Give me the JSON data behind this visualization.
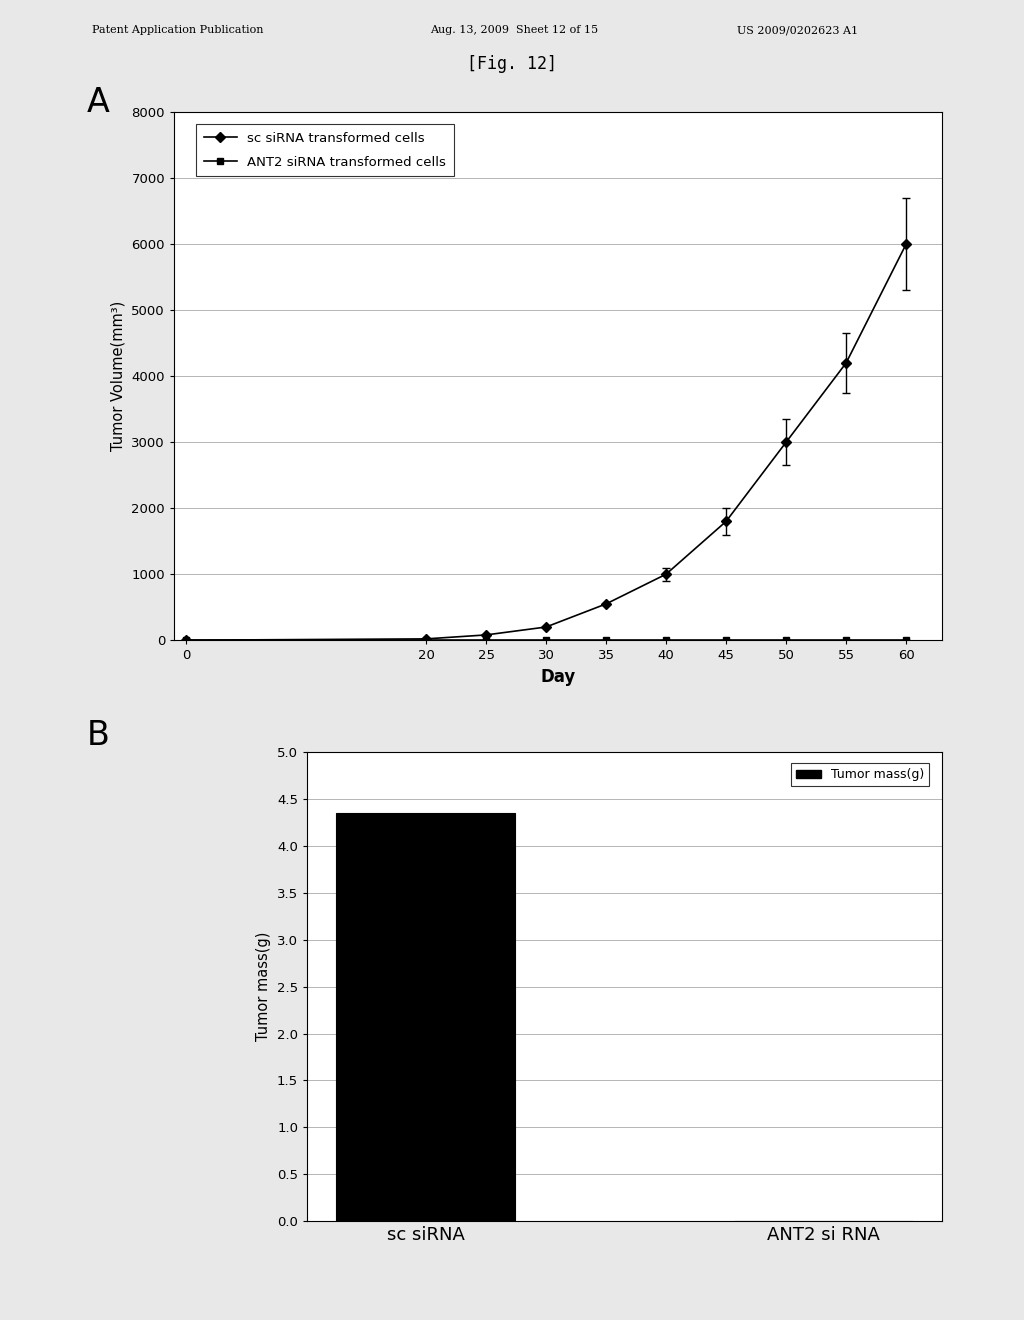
{
  "fig_title": "[Fig. 12]",
  "patent_header_left": "Patent Application Publication",
  "patent_header_mid": "Aug. 13, 2009  Sheet 12 of 15",
  "patent_header_right": "US 2009/0202623 A1",
  "panel_A_label": "A",
  "sc_siRNA_x_pts": [
    0,
    20,
    25,
    30,
    35,
    40,
    45,
    50,
    55,
    60
  ],
  "sc_siRNA_y_pts": [
    0,
    20,
    80,
    200,
    550,
    1000,
    1800,
    3000,
    4200,
    6000
  ],
  "sc_siRNA_yerr": [
    0,
    0,
    0,
    0,
    0,
    100,
    200,
    350,
    450,
    700
  ],
  "ant2_siRNA_x_pts": [
    0,
    20,
    25,
    30,
    35,
    40,
    45,
    50,
    55,
    60
  ],
  "ant2_siRNA_y_pts": [
    0,
    0,
    0,
    0,
    0,
    0,
    0,
    0,
    0,
    0
  ],
  "ant2_siRNA_yerr": [
    0,
    0,
    0,
    0,
    0,
    0,
    0,
    0,
    0,
    0
  ],
  "A_ylabel": "Tumor Volume(mm³)",
  "A_xlabel": "Day",
  "A_ylim": [
    0,
    8000
  ],
  "A_yticks": [
    0,
    1000,
    2000,
    3000,
    4000,
    5000,
    6000,
    7000,
    8000
  ],
  "A_xticks": [
    0,
    20,
    25,
    30,
    35,
    40,
    45,
    50,
    55,
    60
  ],
  "legend_sc": "sc siRNA transformed cells",
  "legend_ant2": "ANT2 siRNA transformed cells",
  "panel_B_label": "B",
  "bar_categories": [
    "sc siRNA",
    "ANT2 si RNA"
  ],
  "bar_values": [
    4.35,
    0.0
  ],
  "bar_color": "#000000",
  "B_ylabel": "Tumor mass(g)",
  "B_ylim": [
    0,
    5
  ],
  "B_yticks": [
    0,
    0.5,
    1,
    1.5,
    2,
    2.5,
    3,
    3.5,
    4,
    4.5,
    5
  ],
  "legend_tumor_mass": "Tumor mass(g)",
  "bg_color": "#e8e8e8",
  "plot_bg": "#ffffff",
  "line_color": "#000000",
  "marker_sc": "D",
  "marker_ant2": "s",
  "marker_size": 5
}
